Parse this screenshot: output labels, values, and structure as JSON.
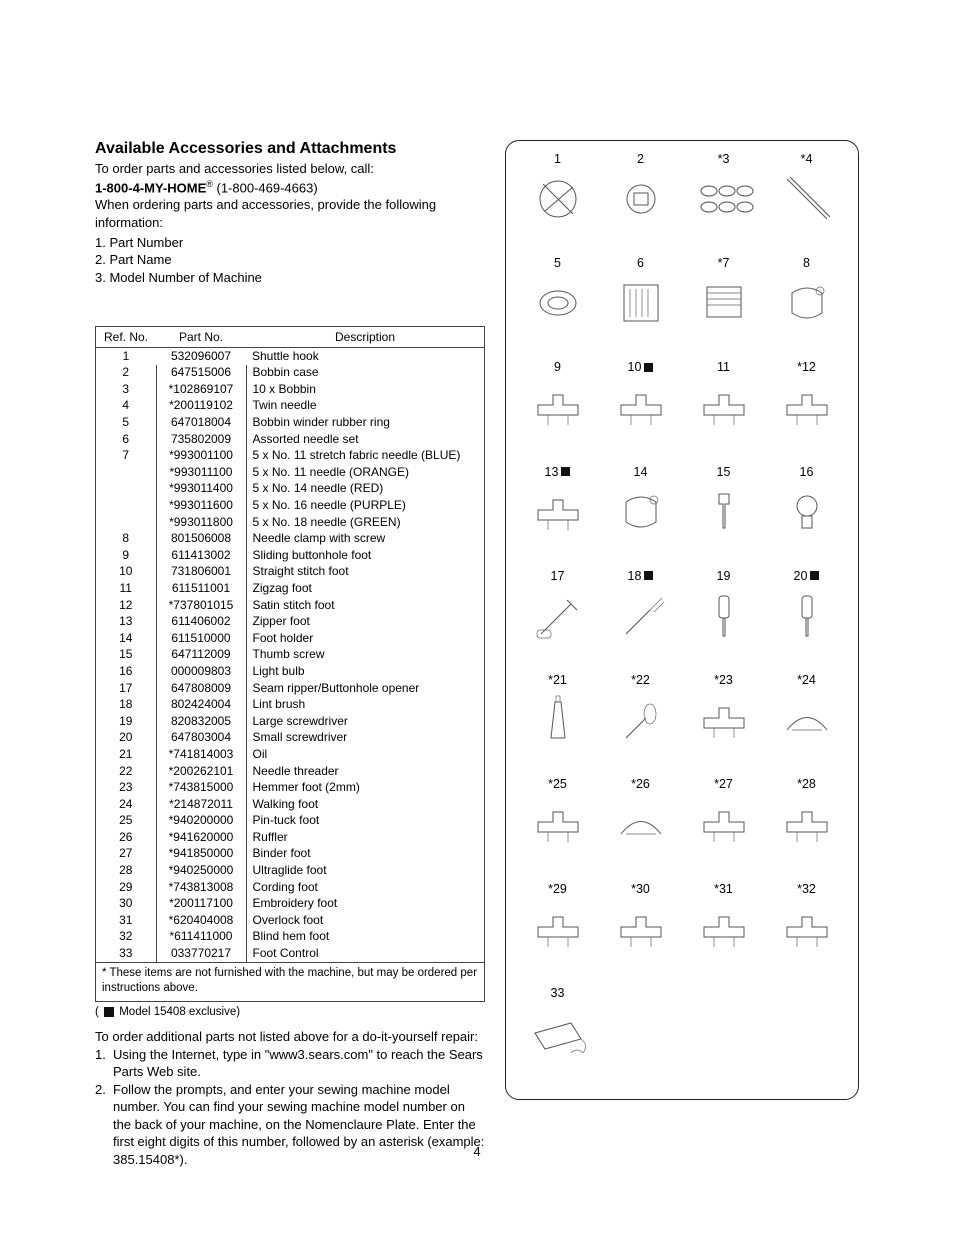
{
  "title": "Available Accessories and Attachments",
  "intro": {
    "line1": "To order parts and accessories listed below, call:",
    "phone_label": "1-800-4-MY-HOME",
    "phone_sup": "®",
    "phone_paren": " (1-800-469-4663)",
    "line2": "When ordering parts and accessories, provide the following information:"
  },
  "info_items": [
    "1.  Part Number",
    "2.  Part Name",
    "3.  Model Number of Machine"
  ],
  "table": {
    "headers": [
      "Ref. No.",
      "Part No.",
      "Description"
    ],
    "rows": [
      [
        "1",
        "532096007",
        "Shuttle hook"
      ],
      [
        "2",
        "647515006",
        "Bobbin case"
      ],
      [
        "3",
        "*102869107",
        "10 x Bobbin"
      ],
      [
        "4",
        "*200119102",
        "Twin needle"
      ],
      [
        "5",
        "647018004",
        "Bobbin winder rubber ring"
      ],
      [
        "6",
        "735802009",
        "Assorted needle set"
      ],
      [
        "7",
        "*993001100",
        "5 x No. 11 stretch fabric needle (BLUE)"
      ],
      [
        "",
        "*993011100",
        "5 x No. 11 needle (ORANGE)"
      ],
      [
        "",
        "*993011400",
        "5 x No. 14 needle (RED)"
      ],
      [
        "",
        "*993011600",
        "5 x No. 16 needle (PURPLE)"
      ],
      [
        "",
        "*993011800",
        "5 x No. 18 needle (GREEN)"
      ],
      [
        "8",
        "801506008",
        "Needle clamp with screw"
      ],
      [
        "9",
        "611413002",
        "Sliding buttonhole foot"
      ],
      [
        "10",
        "731806001",
        "Straight stitch foot"
      ],
      [
        "11",
        "611511001",
        "Zigzag foot"
      ],
      [
        "12",
        "*737801015",
        "Satin stitch foot"
      ],
      [
        "13",
        "611406002",
        "Zipper foot"
      ],
      [
        "14",
        "611510000",
        "Foot holder"
      ],
      [
        "15",
        "647112009",
        "Thumb screw"
      ],
      [
        "16",
        "000009803",
        "Light bulb"
      ],
      [
        "17",
        "647808009",
        "Seam ripper/Buttonhole opener"
      ],
      [
        "18",
        "802424004",
        "Lint brush"
      ],
      [
        "19",
        "820832005",
        "Large screwdriver"
      ],
      [
        "20",
        "647803004",
        "Small screwdriver"
      ],
      [
        "21",
        "*741814003",
        "Oil"
      ],
      [
        "22",
        "*200262101",
        "Needle threader"
      ],
      [
        "23",
        "*743815000",
        "Hemmer foot (2mm)"
      ],
      [
        "24",
        "*214872011",
        "Walking foot"
      ],
      [
        "25",
        "*940200000",
        "Pin-tuck foot"
      ],
      [
        "26",
        "*941620000",
        "Ruffler"
      ],
      [
        "27",
        "*941850000",
        "Binder foot"
      ],
      [
        "28",
        "*940250000",
        "Ultraglide foot"
      ],
      [
        "29",
        "*743813008",
        "Cording foot"
      ],
      [
        "30",
        "*200117100",
        "Embroidery foot"
      ],
      [
        "31",
        "*620404008",
        "Overlock foot"
      ],
      [
        "32",
        "*611411000",
        "Blind hem foot"
      ],
      [
        "33",
        "033770217",
        "Foot Control"
      ]
    ],
    "footnote": "* These items are not furnished with the machine, but may be ordered per instructions above."
  },
  "legend_text": " Model 15408 exclusive)",
  "legend_open": "( ",
  "order_more": {
    "intro": "To order additional parts not listed above for a do-it-yourself repair:",
    "steps": [
      "Using the Internet, type in \"www3.sears.com\" to reach the Sears Parts Web site.",
      "Follow the prompts, and enter your sewing machine model number. You can find your sewing machine model number on the back of your machine, on the Nomenclaure Plate. Enter the first eight digits of this number, followed by an asterisk (example: 385.15408*)."
    ]
  },
  "diagram_labels": [
    {
      "n": "1"
    },
    {
      "n": "2"
    },
    {
      "n": "*3"
    },
    {
      "n": "*4"
    },
    {
      "n": "5"
    },
    {
      "n": "6"
    },
    {
      "n": "*7"
    },
    {
      "n": "8"
    },
    {
      "n": "9"
    },
    {
      "n": "10",
      "sq": true
    },
    {
      "n": "11"
    },
    {
      "n": "*12"
    },
    {
      "n": "13",
      "sq": true
    },
    {
      "n": "14"
    },
    {
      "n": "15"
    },
    {
      "n": "16"
    },
    {
      "n": "17"
    },
    {
      "n": "18",
      "sq": true
    },
    {
      "n": "19"
    },
    {
      "n": "20",
      "sq": true
    },
    {
      "n": "*21"
    },
    {
      "n": "*22"
    },
    {
      "n": "*23"
    },
    {
      "n": "*24"
    },
    {
      "n": "*25"
    },
    {
      "n": "*26"
    },
    {
      "n": "*27"
    },
    {
      "n": "*28"
    },
    {
      "n": "*29"
    },
    {
      "n": "*30"
    },
    {
      "n": "*31"
    },
    {
      "n": "*32"
    },
    {
      "n": "33"
    }
  ],
  "page_number": "4",
  "colors": {
    "text": "#000000",
    "border": "#444444",
    "stroke": "#555555",
    "bg": "#ffffff"
  }
}
